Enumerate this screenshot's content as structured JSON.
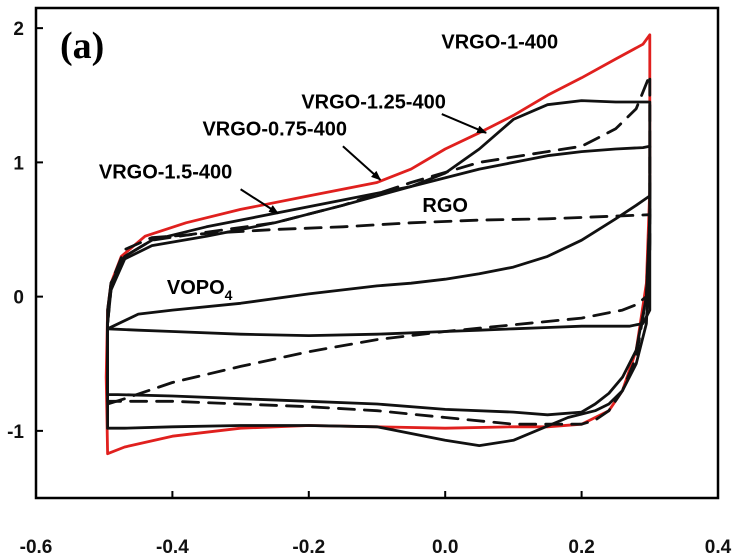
{
  "chart_data": {
    "type": "line",
    "panel_label": "(a)",
    "xlabel": "",
    "ylabel": "",
    "xlim": [
      -0.6,
      0.4
    ],
    "ylim": [
      -1.5,
      2.15
    ],
    "x_ticks": [
      -0.6,
      -0.4,
      -0.2,
      0.0,
      0.2,
      0.4
    ],
    "x_tick_labels": [
      "-0.6",
      "-0.4",
      "-0.2",
      "0.0",
      "0.2",
      "0.4"
    ],
    "y_ticks": [
      -1,
      0,
      1,
      2
    ],
    "y_tick_labels": [
      "-1",
      "0",
      "1",
      "2"
    ],
    "grid": false,
    "series": [
      {
        "name": "VRGO-1-400",
        "color": "#e0201e",
        "dash": "solid",
        "x": [
          -0.495,
          -0.49,
          -0.475,
          -0.44,
          -0.38,
          -0.3,
          -0.2,
          -0.1,
          -0.05,
          0.0,
          0.05,
          0.1,
          0.15,
          0.2,
          0.25,
          0.29,
          0.3,
          0.3,
          0.295,
          0.28,
          0.26,
          0.24,
          0.2,
          0.15,
          0.1,
          0.0,
          -0.1,
          -0.2,
          -0.3,
          -0.4,
          -0.47,
          -0.495,
          -0.497,
          -0.495
        ],
        "y": [
          -0.1,
          0.1,
          0.3,
          0.45,
          0.55,
          0.65,
          0.75,
          0.85,
          0.95,
          1.1,
          1.22,
          1.35,
          1.5,
          1.63,
          1.77,
          1.88,
          1.95,
          0.8,
          0.1,
          -0.4,
          -0.7,
          -0.85,
          -0.95,
          -0.97,
          -0.97,
          -0.98,
          -0.97,
          -0.96,
          -0.98,
          -1.04,
          -1.12,
          -1.17,
          -0.6,
          -0.1
        ]
      },
      {
        "name": "VRGO-1.25-400",
        "color": "#111111",
        "dash": "solid",
        "x": [
          -0.495,
          -0.49,
          -0.47,
          -0.43,
          -0.35,
          -0.25,
          -0.15,
          -0.05,
          0.0,
          0.05,
          0.1,
          0.15,
          0.2,
          0.25,
          0.3,
          0.3,
          0.295,
          0.28,
          0.26,
          0.24,
          0.22,
          0.18,
          0.1,
          0.05,
          0.0,
          -0.1,
          -0.2,
          -0.3,
          -0.4,
          -0.47,
          -0.495,
          -0.495
        ],
        "y": [
          -0.1,
          0.1,
          0.3,
          0.42,
          0.52,
          0.62,
          0.72,
          0.82,
          0.92,
          1.1,
          1.32,
          1.43,
          1.46,
          1.45,
          1.45,
          0.4,
          -0.2,
          -0.5,
          -0.7,
          -0.8,
          -0.85,
          -0.9,
          -1.07,
          -1.11,
          -1.07,
          -0.97,
          -0.96,
          -0.96,
          -0.97,
          -0.98,
          -0.98,
          -0.1
        ]
      },
      {
        "name": "VRGO-0.75-400",
        "color": "#111111",
        "dash": "dashed",
        "x": [
          -0.495,
          -0.49,
          -0.47,
          -0.43,
          -0.35,
          -0.25,
          -0.15,
          -0.05,
          0.05,
          0.15,
          0.2,
          0.25,
          0.28,
          0.3,
          0.3,
          0.295,
          0.28,
          0.26,
          0.24,
          0.22,
          0.2,
          0.15,
          0.1,
          0.0,
          -0.1,
          -0.2,
          -0.3,
          -0.4,
          -0.48,
          -0.495,
          -0.495
        ],
        "y": [
          -0.2,
          0.05,
          0.3,
          0.42,
          0.48,
          0.55,
          0.68,
          0.85,
          1.0,
          1.08,
          1.12,
          1.25,
          1.4,
          1.65,
          0.6,
          0.0,
          -0.45,
          -0.7,
          -0.85,
          -0.92,
          -0.95,
          -0.95,
          -0.95,
          -0.9,
          -0.85,
          -0.82,
          -0.8,
          -0.78,
          -0.78,
          -0.78,
          -0.2
        ]
      },
      {
        "name": "VRGO-1.5-400",
        "color": "#111111",
        "dash": "solid",
        "x": [
          -0.495,
          -0.49,
          -0.47,
          -0.43,
          -0.35,
          -0.25,
          -0.15,
          -0.05,
          0.05,
          0.15,
          0.2,
          0.25,
          0.29,
          0.3,
          0.3,
          0.295,
          0.28,
          0.26,
          0.24,
          0.22,
          0.2,
          0.15,
          0.1,
          0.0,
          -0.1,
          -0.2,
          -0.3,
          -0.4,
          -0.48,
          -0.495,
          -0.495
        ],
        "y": [
          -0.2,
          0.05,
          0.28,
          0.38,
          0.45,
          0.55,
          0.68,
          0.82,
          0.95,
          1.05,
          1.08,
          1.1,
          1.11,
          1.12,
          0.6,
          0.0,
          -0.4,
          -0.6,
          -0.72,
          -0.8,
          -0.86,
          -0.88,
          -0.86,
          -0.84,
          -0.8,
          -0.78,
          -0.76,
          -0.74,
          -0.73,
          -0.73,
          -0.2
        ]
      },
      {
        "name": "RGO",
        "color": "#111111",
        "dash": "dashed",
        "x": [
          -0.495,
          -0.49,
          -0.47,
          -0.43,
          -0.35,
          -0.25,
          -0.15,
          -0.05,
          0.05,
          0.15,
          0.25,
          0.3,
          0.3,
          0.295,
          0.28,
          0.26,
          0.24,
          0.2,
          0.1,
          0.0,
          -0.1,
          -0.2,
          -0.3,
          -0.4,
          -0.47,
          -0.495,
          -0.495
        ],
        "y": [
          -0.2,
          0.1,
          0.35,
          0.44,
          0.47,
          0.5,
          0.52,
          0.55,
          0.57,
          0.58,
          0.6,
          0.61,
          0.3,
          0.0,
          -0.06,
          -0.1,
          -0.12,
          -0.16,
          -0.21,
          -0.26,
          -0.32,
          -0.41,
          -0.52,
          -0.64,
          -0.76,
          -0.8,
          -0.2
        ]
      },
      {
        "name": "VOPO4",
        "color": "#111111",
        "dash": "solid",
        "x": [
          -0.495,
          -0.45,
          -0.4,
          -0.3,
          -0.2,
          -0.1,
          -0.05,
          0.0,
          0.05,
          0.1,
          0.15,
          0.2,
          0.25,
          0.28,
          0.3,
          0.3,
          0.3,
          0.29,
          0.27,
          0.25,
          0.2,
          0.15,
          0.1,
          0.05,
          0.0,
          -0.1,
          -0.2,
          -0.3,
          -0.4,
          -0.45,
          -0.495
        ],
        "y": [
          -0.24,
          -0.13,
          -0.1,
          -0.05,
          0.02,
          0.08,
          0.1,
          0.13,
          0.17,
          0.22,
          0.3,
          0.42,
          0.58,
          0.68,
          0.75,
          0.9,
          -0.1,
          -0.2,
          -0.22,
          -0.22,
          -0.22,
          -0.23,
          -0.24,
          -0.25,
          -0.26,
          -0.28,
          -0.29,
          -0.28,
          -0.26,
          -0.25,
          -0.24
        ]
      }
    ],
    "labels": [
      {
        "text": "VRGO-1-400",
        "x": 0.08,
        "y": 1.85
      },
      {
        "text": "VRGO-1.25-400",
        "x": -0.105,
        "y": 1.4
      },
      {
        "text": "VRGO-0.75-400",
        "x": -0.25,
        "y": 1.2
      },
      {
        "text": "VRGO-1.5-400",
        "x": -0.41,
        "y": 0.88
      },
      {
        "text": "RGO",
        "x": 0.0,
        "y": 0.63
      },
      {
        "text": "VOPO4",
        "x": -0.36,
        "y": 0.02
      }
    ],
    "pointers": [
      {
        "series": "VRGO-1.25-400",
        "from": [
          -0.005,
          1.36
        ],
        "to": [
          0.06,
          1.22
        ]
      },
      {
        "series": "VRGO-0.75-400",
        "from": [
          -0.15,
          1.12
        ],
        "to": [
          -0.095,
          0.87
        ]
      },
      {
        "series": "VRGO-1.5-400",
        "from": [
          -0.3,
          0.8
        ],
        "to": [
          -0.245,
          0.62
        ]
      }
    ]
  }
}
